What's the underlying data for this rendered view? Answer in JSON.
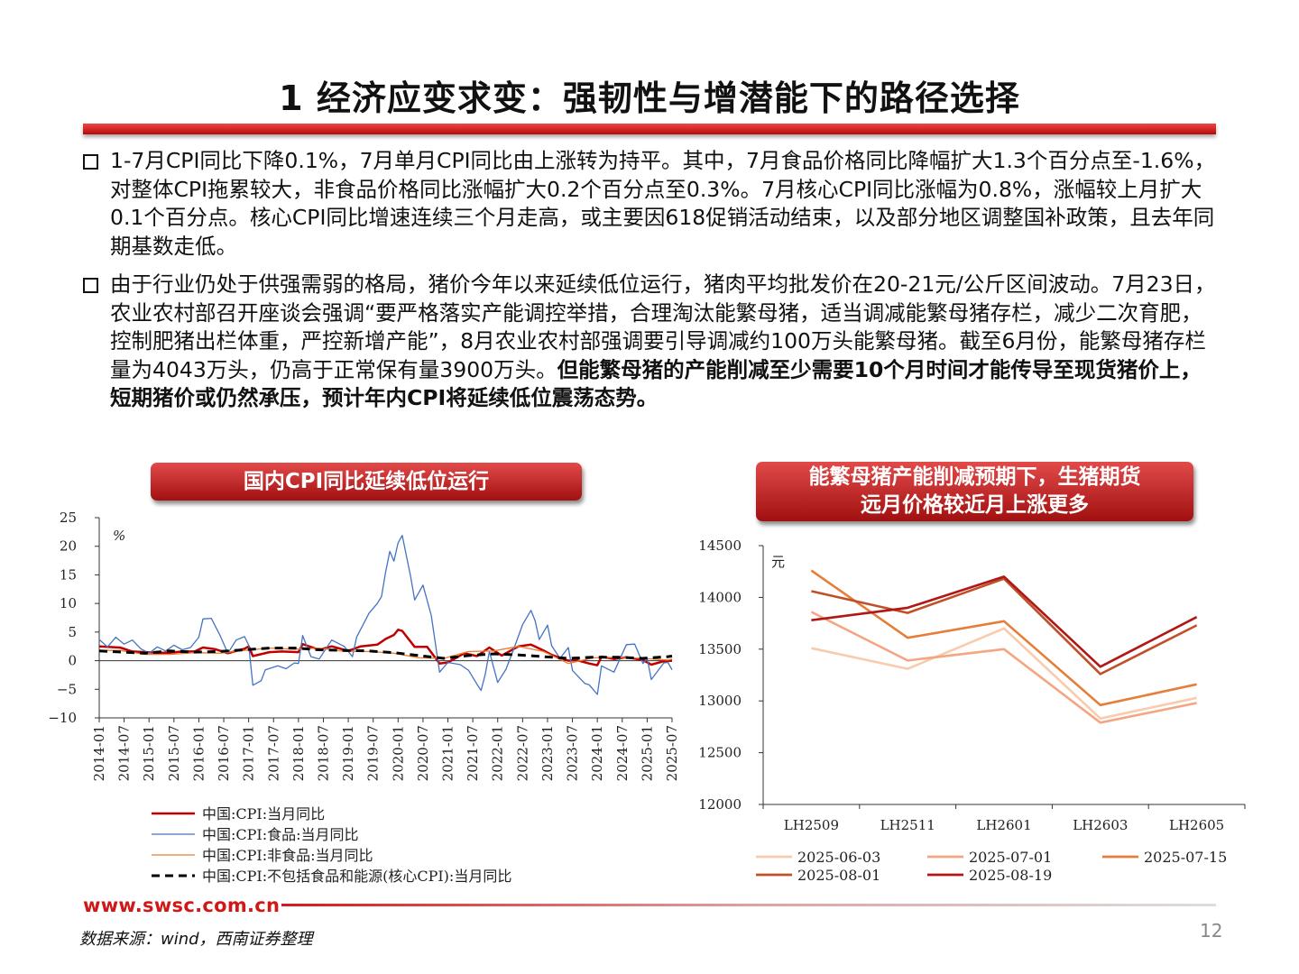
{
  "title": "1 经济应变求变：强韧性与增潜能下的路径选择",
  "bullets": [
    {
      "text": "1-7月CPI同比下降0.1%，7月单月CPI同比由上涨转为持平。其中，7月食品价格同比降幅扩大1.3个百分点至-1.6%，对整体CPI拖累较大，非食品价格同比涨幅扩大0.2个百分点至0.3%。7月核心CPI同比涨幅为0.8%，涨幅较上月扩大0.1个百分点。核心CPI同比增速连续三个月走高，或主要因618促销活动结束，以及部分地区调整国补政策，且去年同期基数走低。",
      "bold": ""
    },
    {
      "text": "由于行业仍处于供强需弱的格局，猪价今年以来延续低位运行，猪肉平均批发价在20-21元/公斤区间波动。7月23日，农业农村部召开座谈会强调“要严格落实产能调控举措，合理淘汰能繁母猪，适当调减能繁母猪存栏，减少二次育肥，控制肥猪出栏体重，严控新增产能”，8月农业农村部强调要引导调减约100万头能繁母猪。截至6月份，能繁母猪存栏量为4043万头，仍高于正常保有量3900万头。",
      "bold": "但能繁母猪的产能削减至少需要10个月时间才能传导至现货猪价上，短期猪价或仍然承压，预计年内CPI将延续低位震荡态势。"
    }
  ],
  "footer": {
    "url": "www.swsc.com.cn",
    "source": "数据来源：wind，西南证券整理",
    "page": "12"
  },
  "chart_data": [
    {
      "type": "line",
      "title": "国内CPI同比延续低位运行",
      "ylabel": "%",
      "ylim": [
        -10,
        25
      ],
      "yticks": [
        "25",
        "20",
        "15",
        "10",
        "5",
        "0",
        "−5",
        "−10"
      ],
      "xticks": [
        "2014-01",
        "2014-07",
        "2015-01",
        "2015-07",
        "2016-01",
        "2016-07",
        "2017-01",
        "2017-07",
        "2018-01",
        "2018-07",
        "2019-01",
        "2019-07",
        "2020-01",
        "2020-07",
        "2021-01",
        "2021-07",
        "2022-01",
        "2022-07",
        "2023-01",
        "2023-07",
        "2024-01",
        "2024-07",
        "2025-01",
        "2025-07"
      ],
      "x_start": "2014-01",
      "x_end": "2025-07",
      "legend_position": "bottom",
      "series": [
        {
          "name": "中国:CPI:当月同比",
          "color": "#c00000",
          "style": "solid",
          "points": [
            [
              "2014-01",
              2.5
            ],
            [
              "2014-03",
              2.4
            ],
            [
              "2014-06",
              2.3
            ],
            [
              "2014-09",
              1.6
            ],
            [
              "2014-12",
              1.5
            ],
            [
              "2015-03",
              1.4
            ],
            [
              "2015-06",
              1.4
            ],
            [
              "2015-09",
              1.6
            ],
            [
              "2015-12",
              1.6
            ],
            [
              "2016-02",
              2.3
            ],
            [
              "2016-05",
              2.0
            ],
            [
              "2016-08",
              1.3
            ],
            [
              "2016-12",
              2.1
            ],
            [
              "2017-01",
              2.5
            ],
            [
              "2017-02",
              0.8
            ],
            [
              "2017-06",
              1.5
            ],
            [
              "2017-09",
              1.6
            ],
            [
              "2018-01",
              1.5
            ],
            [
              "2018-02",
              2.9
            ],
            [
              "2018-06",
              1.9
            ],
            [
              "2018-09",
              2.5
            ],
            [
              "2018-12",
              1.9
            ],
            [
              "2019-01",
              1.7
            ],
            [
              "2019-04",
              2.5
            ],
            [
              "2019-08",
              2.8
            ],
            [
              "2019-10",
              3.8
            ],
            [
              "2019-12",
              4.5
            ],
            [
              "2020-01",
              5.4
            ],
            [
              "2020-02",
              5.2
            ],
            [
              "2020-05",
              2.4
            ],
            [
              "2020-08",
              2.4
            ],
            [
              "2020-11",
              -0.5
            ],
            [
              "2021-01",
              -0.3
            ],
            [
              "2021-05",
              1.3
            ],
            [
              "2021-08",
              0.8
            ],
            [
              "2021-11",
              2.3
            ],
            [
              "2022-02",
              0.9
            ],
            [
              "2022-06",
              2.5
            ],
            [
              "2022-09",
              2.8
            ],
            [
              "2022-12",
              1.8
            ],
            [
              "2023-02",
              1.0
            ],
            [
              "2023-06",
              0.0
            ],
            [
              "2023-08",
              0.1
            ],
            [
              "2023-11",
              -0.5
            ],
            [
              "2024-01",
              -0.8
            ],
            [
              "2024-02",
              0.7
            ],
            [
              "2024-05",
              0.3
            ],
            [
              "2024-08",
              0.6
            ],
            [
              "2024-12",
              0.1
            ],
            [
              "2025-02",
              -0.7
            ],
            [
              "2025-05",
              -0.1
            ],
            [
              "2025-07",
              0.0
            ]
          ]
        },
        {
          "name": "中国:CPI:食品:当月同比",
          "color": "#4472c4",
          "style": "solid",
          "points": [
            [
              "2014-01",
              3.7
            ],
            [
              "2014-03",
              2.4
            ],
            [
              "2014-05",
              4.1
            ],
            [
              "2014-07",
              2.9
            ],
            [
              "2014-09",
              3.6
            ],
            [
              "2014-11",
              2.1
            ],
            [
              "2015-01",
              1.3
            ],
            [
              "2015-03",
              2.4
            ],
            [
              "2015-05",
              1.7
            ],
            [
              "2015-07",
              2.7
            ],
            [
              "2015-09",
              1.9
            ],
            [
              "2015-11",
              2.3
            ],
            [
              "2016-01",
              4.1
            ],
            [
              "2016-02",
              7.3
            ],
            [
              "2016-04",
              7.4
            ],
            [
              "2016-06",
              4.6
            ],
            [
              "2016-08",
              1.3
            ],
            [
              "2016-10",
              3.6
            ],
            [
              "2016-12",
              4.2
            ],
            [
              "2017-01",
              2.7
            ],
            [
              "2017-02",
              -4.3
            ],
            [
              "2017-04",
              -3.5
            ],
            [
              "2017-05",
              -1.6
            ],
            [
              "2017-08",
              -0.9
            ],
            [
              "2017-10",
              -1.4
            ],
            [
              "2017-12",
              -0.4
            ],
            [
              "2018-01",
              -0.5
            ],
            [
              "2018-02",
              4.4
            ],
            [
              "2018-04",
              0.7
            ],
            [
              "2018-06",
              0.3
            ],
            [
              "2018-09",
              3.6
            ],
            [
              "2018-12",
              2.5
            ],
            [
              "2019-02",
              0.7
            ],
            [
              "2019-03",
              4.1
            ],
            [
              "2019-06",
              8.3
            ],
            [
              "2019-08",
              10.0
            ],
            [
              "2019-09",
              11.2
            ],
            [
              "2019-10",
              15.5
            ],
            [
              "2019-11",
              19.1
            ],
            [
              "2019-12",
              17.4
            ],
            [
              "2020-01",
              20.6
            ],
            [
              "2020-02",
              21.9
            ],
            [
              "2020-04",
              14.8
            ],
            [
              "2020-05",
              10.6
            ],
            [
              "2020-07",
              13.2
            ],
            [
              "2020-09",
              7.9
            ],
            [
              "2020-11",
              -2.0
            ],
            [
              "2021-01",
              -0.3
            ],
            [
              "2021-04",
              -0.7
            ],
            [
              "2021-06",
              -1.7
            ],
            [
              "2021-08",
              -4.1
            ],
            [
              "2021-09",
              -5.2
            ],
            [
              "2021-10",
              -2.4
            ],
            [
              "2021-11",
              1.6
            ],
            [
              "2022-01",
              -3.8
            ],
            [
              "2022-03",
              -1.5
            ],
            [
              "2022-05",
              2.3
            ],
            [
              "2022-07",
              6.3
            ],
            [
              "2022-09",
              8.8
            ],
            [
              "2022-10",
              7.0
            ],
            [
              "2022-11",
              3.7
            ],
            [
              "2023-01",
              6.2
            ],
            [
              "2023-02",
              2.6
            ],
            [
              "2023-04",
              0.4
            ],
            [
              "2023-06",
              2.3
            ],
            [
              "2023-07",
              -1.7
            ],
            [
              "2023-10",
              -4.0
            ],
            [
              "2023-11",
              -4.2
            ],
            [
              "2024-01",
              -5.9
            ],
            [
              "2024-02",
              -0.9
            ],
            [
              "2024-05",
              -2.0
            ],
            [
              "2024-08",
              2.8
            ],
            [
              "2024-10",
              2.9
            ],
            [
              "2024-12",
              -0.5
            ],
            [
              "2025-01",
              0.4
            ],
            [
              "2025-02",
              -3.3
            ],
            [
              "2025-05",
              -0.4
            ],
            [
              "2025-06",
              -0.3
            ],
            [
              "2025-07",
              -1.6
            ]
          ]
        },
        {
          "name": "中国:CPI:非食品:当月同比",
          "color": "#ed7d31",
          "style": "solid",
          "points": [
            [
              "2014-01",
              1.8
            ],
            [
              "2014-06",
              1.8
            ],
            [
              "2014-12",
              1.1
            ],
            [
              "2015-06",
              1.1
            ],
            [
              "2015-12",
              1.4
            ],
            [
              "2016-06",
              1.3
            ],
            [
              "2016-12",
              1.8
            ],
            [
              "2017-06",
              2.2
            ],
            [
              "2017-12",
              2.0
            ],
            [
              "2018-06",
              2.2
            ],
            [
              "2018-12",
              1.6
            ],
            [
              "2019-06",
              1.6
            ],
            [
              "2019-12",
              1.3
            ],
            [
              "2020-06",
              0.5
            ],
            [
              "2020-12",
              0.4
            ],
            [
              "2021-06",
              1.6
            ],
            [
              "2021-12",
              1.7
            ],
            [
              "2022-06",
              2.5
            ],
            [
              "2022-12",
              1.6
            ],
            [
              "2023-06",
              -0.5
            ],
            [
              "2023-12",
              0.5
            ],
            [
              "2024-06",
              0.6
            ],
            [
              "2024-12",
              0.4
            ],
            [
              "2025-06",
              0.1
            ],
            [
              "2025-07",
              0.3
            ]
          ]
        },
        {
          "name": "中国:CPI:不包括食品和能源(核心CPI):当月同比",
          "color": "#000000",
          "style": "dashed",
          "points": [
            [
              "2014-01",
              1.7
            ],
            [
              "2014-12",
              1.3
            ],
            [
              "2015-06",
              1.7
            ],
            [
              "2015-12",
              1.5
            ],
            [
              "2016-06",
              1.6
            ],
            [
              "2016-12",
              1.9
            ],
            [
              "2017-06",
              2.2
            ],
            [
              "2017-12",
              2.2
            ],
            [
              "2018-06",
              1.9
            ],
            [
              "2018-12",
              1.8
            ],
            [
              "2019-06",
              1.7
            ],
            [
              "2019-12",
              1.4
            ],
            [
              "2020-06",
              0.9
            ],
            [
              "2020-12",
              0.4
            ],
            [
              "2021-06",
              0.9
            ],
            [
              "2021-12",
              1.2
            ],
            [
              "2022-06",
              1.0
            ],
            [
              "2022-12",
              0.7
            ],
            [
              "2023-06",
              0.4
            ],
            [
              "2023-12",
              0.6
            ],
            [
              "2024-06",
              0.6
            ],
            [
              "2024-12",
              0.4
            ],
            [
              "2025-06",
              0.7
            ],
            [
              "2025-07",
              0.8
            ]
          ]
        }
      ]
    },
    {
      "type": "line",
      "title": "能繁母猪产能削减预期下，生猪期货\n远月价格较近月上涨更多",
      "ylabel": "元",
      "ylim": [
        12000,
        14500
      ],
      "yticks": [
        "14500",
        "14000",
        "13500",
        "13000",
        "12500",
        "12000"
      ],
      "categories": [
        "LH2509",
        "LH2511",
        "LH2601",
        "LH2603",
        "LH2605"
      ],
      "legend_position": "bottom",
      "series": [
        {
          "name": "2025-06-03",
          "color": "#f8cbad",
          "values": [
            13510,
            13310,
            13700,
            12830,
            13030
          ]
        },
        {
          "name": "2025-07-01",
          "color": "#f4a582",
          "values": [
            13860,
            13390,
            13500,
            12790,
            12980
          ]
        },
        {
          "name": "2025-07-15",
          "color": "#e67e3a",
          "values": [
            14260,
            13610,
            13770,
            12960,
            13160
          ]
        },
        {
          "name": "2025-08-01",
          "color": "#c0502a",
          "values": [
            14060,
            13850,
            14180,
            13260,
            13730
          ]
        },
        {
          "name": "2025-08-19",
          "color": "#b01818",
          "values": [
            13780,
            13900,
            14200,
            13330,
            13810
          ]
        }
      ]
    }
  ]
}
